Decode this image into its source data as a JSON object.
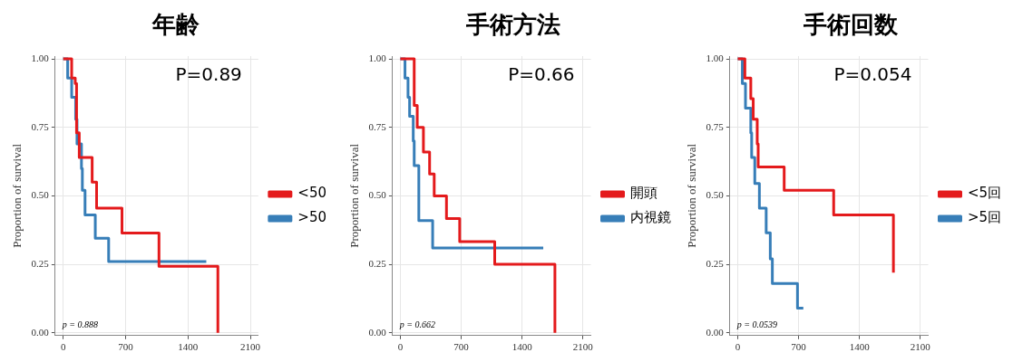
{
  "chart_data": [
    {
      "type": "step",
      "title": "年齢",
      "ylabel": "Proportion of survival",
      "annotations": [
        "P=0.89",
        "p = 0.888"
      ],
      "xlim": [
        -90,
        2190
      ],
      "xticks": [
        0,
        700,
        1400,
        2100
      ],
      "ylim": [
        -0.01,
        1.01
      ],
      "yticks": [
        {
          "value": 0,
          "label": "0.00"
        },
        {
          "value": 0.25,
          "label": "0.25"
        },
        {
          "value": 0.5,
          "label": "0.50"
        },
        {
          "value": 0.75,
          "label": "0.75"
        },
        {
          "value": 1,
          "label": "1.00"
        }
      ],
      "grid": true,
      "legend": "right",
      "marker": "none",
      "line_style": "solid",
      "series": [
        {
          "name": "<50",
          "color": "#e41a1c",
          "x": [
            0,
            95,
            135,
            150,
            180,
            325,
            375,
            660,
            1075,
            1736,
            1736
          ],
          "values": [
            1,
            0.93,
            0.91,
            0.73,
            0.64,
            0.55,
            0.455,
            0.364,
            0.243,
            0.243,
            0
          ]
        },
        {
          "name": ">50",
          "color": "#377eb8",
          "x": [
            0,
            50,
            95,
            140,
            155,
            205,
            215,
            245,
            360,
            510,
            1606
          ],
          "values": [
            1,
            0.93,
            0.86,
            0.78,
            0.69,
            0.6,
            0.52,
            0.43,
            0.345,
            0.26,
            0.26
          ]
        }
      ]
    },
    {
      "type": "step",
      "title": "手術方法",
      "ylabel": "Proportion of survival",
      "annotations": [
        "P=0.66",
        "p = 0.662"
      ],
      "xlim": [
        -90,
        2190
      ],
      "xticks": [
        0,
        700,
        1400,
        2100
      ],
      "ylim": [
        -0.01,
        1.01
      ],
      "yticks": [
        {
          "value": 0,
          "label": "0.00"
        },
        {
          "value": 0.25,
          "label": "0.25"
        },
        {
          "value": 0.5,
          "label": "0.50"
        },
        {
          "value": 0.75,
          "label": "0.75"
        },
        {
          "value": 1,
          "label": "1.00"
        }
      ],
      "grid": true,
      "legend": "right",
      "marker": "none",
      "line_style": "solid",
      "series": [
        {
          "name": "開頭",
          "color": "#e41a1c",
          "x": [
            0,
            159,
            194,
            265,
            336,
            389,
            530,
            682,
            1085,
            1777,
            1777
          ],
          "values": [
            1,
            0.83,
            0.75,
            0.66,
            0.58,
            0.5,
            0.417,
            0.333,
            0.25,
            0.25,
            0
          ]
        },
        {
          "name": "内視鏡",
          "color": "#377eb8",
          "x": [
            0,
            53,
            88,
            106,
            148,
            159,
            212,
            371,
            1643
          ],
          "values": [
            1,
            0.93,
            0.86,
            0.79,
            0.7,
            0.61,
            0.41,
            0.31,
            0.31
          ]
        }
      ]
    },
    {
      "type": "step",
      "title": "手術回数",
      "ylabel": "Proportion of survival",
      "annotations": [
        "P=0.054",
        "p = 0.0539"
      ],
      "xlim": [
        -90,
        2190
      ],
      "xticks": [
        0,
        700,
        1400,
        2100
      ],
      "ylim": [
        -0.01,
        1.01
      ],
      "yticks": [
        {
          "value": 0,
          "label": "0.00"
        },
        {
          "value": 0.25,
          "label": "0.25"
        },
        {
          "value": 0.5,
          "label": "0.50"
        },
        {
          "value": 0.75,
          "label": "0.75"
        },
        {
          "value": 1,
          "label": "1.00"
        }
      ],
      "grid": true,
      "legend": "right",
      "marker": "none",
      "line_style": "solid",
      "series": [
        {
          "name": "<5回",
          "color": "#e41a1c",
          "x": [
            0,
            82,
            150,
            178,
            224,
            235,
            534,
            1103,
            1790,
            1790
          ],
          "values": [
            1,
            0.93,
            0.855,
            0.78,
            0.69,
            0.605,
            0.52,
            0.43,
            0.43,
            0.22
          ]
        },
        {
          "name": ">5回",
          "color": "#377eb8",
          "x": [
            0,
            53,
            89,
            150,
            160,
            196,
            249,
            327,
            374,
            398,
            687,
            754
          ],
          "values": [
            1,
            0.91,
            0.82,
            0.73,
            0.64,
            0.545,
            0.455,
            0.365,
            0.27,
            0.18,
            0.09,
            0.09
          ]
        }
      ]
    }
  ]
}
